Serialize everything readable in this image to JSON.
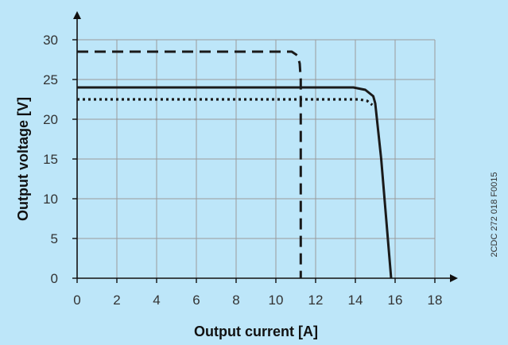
{
  "chart_data": {
    "type": "line",
    "title": "",
    "xlabel": "Output current [A]",
    "ylabel": "Output voltage [V]",
    "xlim": [
      0,
      18
    ],
    "ylim": [
      0,
      30
    ],
    "x_ticks": [
      0,
      2,
      4,
      6,
      8,
      10,
      12,
      14,
      16,
      18
    ],
    "y_ticks": [
      0,
      5,
      10,
      15,
      20,
      25,
      30
    ],
    "grid": true,
    "legend": "none",
    "side_code": "2CDC 272 018 F0015",
    "series": [
      {
        "style": "dashed",
        "color": "#1a1a1a",
        "points": [
          [
            0,
            28.5
          ],
          [
            10.8,
            28.5
          ],
          [
            11.1,
            28.0
          ],
          [
            11.2,
            27.0
          ],
          [
            11.25,
            25.0
          ],
          [
            11.25,
            0
          ]
        ]
      },
      {
        "style": "solid",
        "color": "#1a1a1a",
        "points": [
          [
            0,
            24
          ],
          [
            13.9,
            24
          ],
          [
            14.5,
            23.7
          ],
          [
            14.9,
            22.9
          ],
          [
            15.0,
            22.0
          ],
          [
            15.3,
            15.0
          ],
          [
            15.8,
            0
          ]
        ]
      },
      {
        "style": "dotted",
        "color": "#1a1a1a",
        "points": [
          [
            0,
            22.5
          ],
          [
            14.2,
            22.5
          ],
          [
            14.6,
            22.3
          ],
          [
            14.85,
            21.8
          ]
        ]
      }
    ]
  }
}
